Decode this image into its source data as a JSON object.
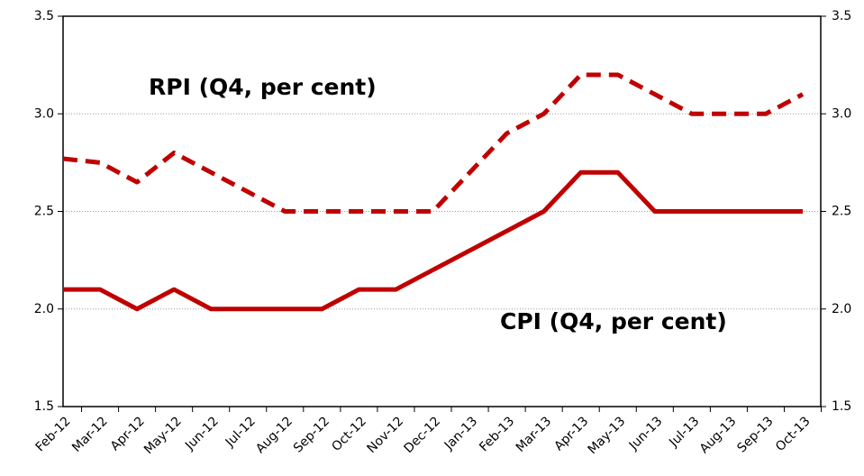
{
  "chart_data": {
    "type": "line",
    "categories": [
      "Feb-12",
      "Mar-12",
      "Apr-12",
      "May-12",
      "Jun-12",
      "Jul-12",
      "Aug-12",
      "Sep-12",
      "Oct-12",
      "Nov-12",
      "Dec-12",
      "Jan-13",
      "Feb-13",
      "Mar-13",
      "Apr-13",
      "May-13",
      "Jun-13",
      "Jul-13",
      "Aug-13",
      "Sep-13",
      "Oct-13"
    ],
    "series": [
      {
        "name": "RPI (Q4, per cent)",
        "color": "#c00000",
        "dash": true,
        "values": [
          2.77,
          2.75,
          2.65,
          2.8,
          2.7,
          2.6,
          2.5,
          2.5,
          2.5,
          2.5,
          2.5,
          2.7,
          2.9,
          3.0,
          3.2,
          3.2,
          3.1,
          3.0,
          3.0,
          3.0,
          3.1
        ]
      },
      {
        "name": "CPI (Q4, per cent)",
        "color": "#c00000",
        "dash": false,
        "values": [
          2.1,
          2.1,
          2.0,
          2.1,
          2.0,
          2.0,
          2.0,
          2.0,
          2.1,
          2.1,
          2.2,
          2.3,
          2.4,
          2.5,
          2.7,
          2.7,
          2.5,
          2.5,
          2.5,
          2.5,
          2.5
        ]
      }
    ],
    "ylim": [
      1.5,
      3.5
    ],
    "yticks": [
      1.5,
      {
        "value": 2,
        "label": "2.0"
      },
      2.5,
      {
        "value": 3,
        "label": "3.0"
      },
      3.5
    ],
    "y2lim": [
      1.5,
      3.5
    ],
    "y2ticks": [
      1.5,
      {
        "value": 2,
        "label": "2.0"
      },
      2.5,
      {
        "value": 3,
        "label": "3.0"
      },
      3.5
    ],
    "grid": true
  }
}
